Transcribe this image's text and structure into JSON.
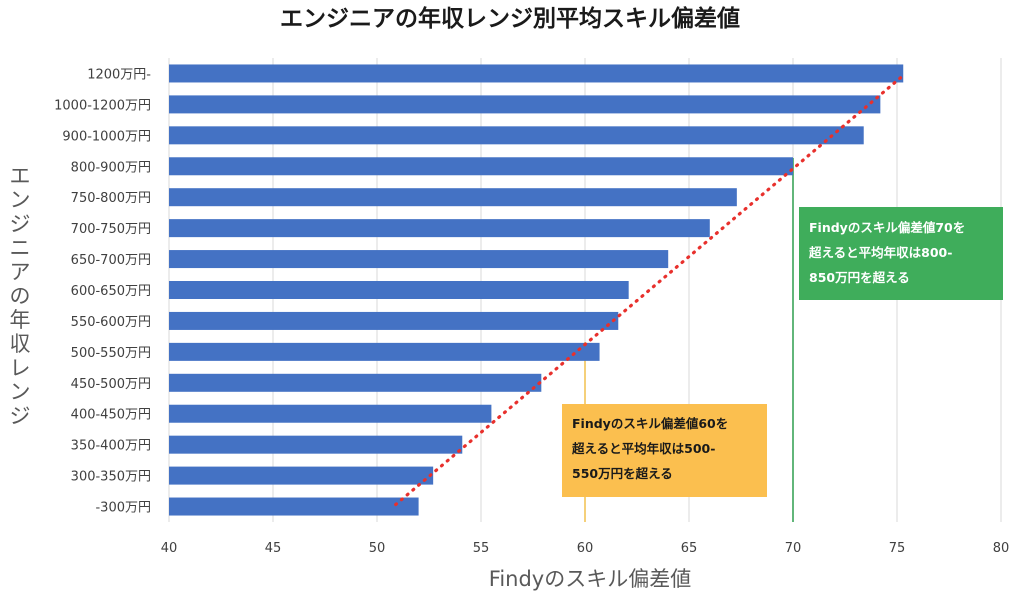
{
  "colors": {
    "bar": "#4472c4",
    "trend": "#e8302c",
    "green_line": "#2e9e4f",
    "green_box": "#3fad5b",
    "yellow_line": "#f2c14e",
    "yellow_box": "#fbbf4f",
    "grid": "#d9d9d9"
  },
  "chart_data": {
    "type": "bar",
    "orientation": "horizontal",
    "title": "エンジニアの年収レンジ別平均スキル偏差値",
    "xlabel": "Findyのスキル偏差値",
    "ylabel": "エンジニアの年収レンジ",
    "xlim": [
      40,
      80
    ],
    "xticks": [
      40,
      45,
      50,
      55,
      60,
      65,
      70,
      75,
      80
    ],
    "grid": "vertical",
    "categories": [
      "1200万円-",
      "1000-1200万円",
      "900-1000万円",
      "800-900万円",
      "750-800万円",
      "700-750万円",
      "650-700万円",
      "600-650万円",
      "550-600万円",
      "500-550万円",
      "450-500万円",
      "400-450万円",
      "350-400万円",
      "300-350万円",
      "-300万円"
    ],
    "values": [
      75.3,
      74.2,
      73.4,
      70.0,
      67.3,
      66.0,
      64.0,
      62.1,
      61.6,
      60.7,
      57.9,
      55.5,
      54.1,
      52.7,
      52.0
    ],
    "trendline": {
      "style": "dotted",
      "from": [
        50.9,
        "-300万円"
      ],
      "to": [
        75.3,
        "1200万円-"
      ]
    },
    "reference_lines": [
      {
        "x": 70,
        "color": "green"
      },
      {
        "x": 60,
        "color": "yellow"
      }
    ]
  },
  "annotations": {
    "green": "Findyのスキル偏差値70を\n超えると平均年収は800-\n850万円を超える",
    "yellow": "Findyのスキル偏差値60を\n超えると平均年収は500-\n550万円を超える"
  }
}
